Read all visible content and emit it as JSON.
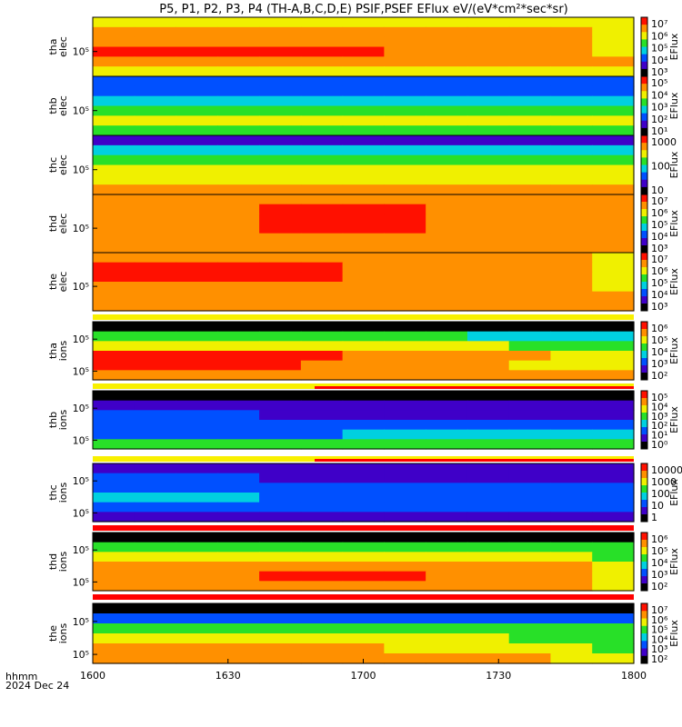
{
  "chart_data": {
    "type": "heatmap",
    "title": "P5, P1, P2, P3, P4 (TH-A,B,C,D,E) PSIF,PSEF EFlux eV/(eV*cm²*sec*sr)",
    "x_axis": {
      "ticks": [
        "1600",
        "1630",
        "1700",
        "1730",
        "1800"
      ],
      "corner_label": "hhmm",
      "date_label": "2024 Dec 24"
    },
    "panels": [
      {
        "probe": "tha",
        "species": "elec",
        "y_ticks": [
          "10⁵"
        ],
        "colorbar": {
          "label": "EFlux",
          "ticks": [
            "10⁷",
            "10⁶",
            "10⁵",
            "10⁴",
            "10³"
          ]
        },
        "values": [
          [
            5,
            5,
            5,
            5,
            5,
            5,
            5,
            5,
            5,
            5,
            5,
            5,
            5
          ],
          [
            6,
            6,
            6,
            6,
            6,
            6,
            6,
            6,
            6,
            6,
            6,
            6,
            5
          ],
          [
            6,
            6,
            6,
            6,
            6,
            6,
            6,
            6,
            6,
            6,
            6,
            6,
            5
          ],
          [
            7,
            7,
            7,
            7,
            7,
            7,
            7,
            6,
            6,
            6,
            6,
            6,
            5
          ],
          [
            6,
            6,
            6,
            6,
            6,
            6,
            6,
            6,
            6,
            6,
            6,
            6,
            6
          ],
          [
            5,
            5,
            5,
            5,
            5,
            5,
            5,
            5,
            5,
            5,
            5,
            5,
            5
          ]
        ]
      },
      {
        "probe": "thb",
        "species": "elec",
        "y_ticks": [
          "10⁵"
        ],
        "colorbar": {
          "label": "EFlux",
          "ticks": [
            "10⁵",
            "10⁴",
            "10³",
            "10²",
            "10¹"
          ]
        },
        "values": [
          [
            2,
            2,
            2,
            2,
            2,
            2,
            2,
            2,
            2,
            2,
            2,
            2,
            2
          ],
          [
            2,
            2,
            2,
            2,
            2,
            2,
            2,
            2,
            2,
            2,
            2,
            2,
            2
          ],
          [
            3,
            3,
            3,
            3,
            3,
            3,
            3,
            3,
            3,
            3,
            3,
            3,
            3
          ],
          [
            4,
            4,
            4,
            4,
            4,
            4,
            4,
            4,
            4,
            4,
            4,
            4,
            4
          ],
          [
            5,
            5,
            5,
            5,
            5,
            5,
            5,
            5,
            5,
            5,
            5,
            5,
            5
          ],
          [
            4,
            4,
            4,
            4,
            4,
            4,
            4,
            4,
            4,
            4,
            4,
            4,
            4
          ]
        ]
      },
      {
        "probe": "thc",
        "species": "elec",
        "y_ticks": [
          "10⁵"
        ],
        "colorbar": {
          "label": "EFlux",
          "ticks": [
            "1000",
            "100",
            "10"
          ]
        },
        "values": [
          [
            1,
            1,
            1,
            1,
            1,
            1,
            1,
            1,
            1,
            1,
            1,
            1,
            1
          ],
          [
            3,
            3,
            3,
            3,
            3,
            3,
            3,
            3,
            3,
            3,
            3,
            3,
            3
          ],
          [
            4,
            4,
            4,
            4,
            4,
            4,
            4,
            4,
            4,
            4,
            4,
            4,
            4
          ],
          [
            5,
            5,
            5,
            5,
            5,
            5,
            5,
            5,
            5,
            5,
            5,
            5,
            5
          ],
          [
            5,
            5,
            5,
            5,
            5,
            5,
            5,
            5,
            5,
            5,
            5,
            5,
            5
          ],
          [
            6,
            6,
            6,
            6,
            6,
            6,
            6,
            6,
            6,
            6,
            6,
            6,
            6
          ]
        ]
      },
      {
        "probe": "thd",
        "species": "elec",
        "y_ticks": [
          "10⁵"
        ],
        "colorbar": {
          "label": "EFlux",
          "ticks": [
            "10⁷",
            "10⁶",
            "10⁵",
            "10⁴",
            "10³"
          ]
        },
        "values": [
          [
            6,
            6,
            6,
            6,
            6,
            6,
            6,
            6,
            6,
            6,
            6,
            6,
            6
          ],
          [
            6,
            6,
            6,
            6,
            7,
            7,
            7,
            7,
            6,
            6,
            6,
            6,
            6
          ],
          [
            6,
            6,
            6,
            6,
            7,
            7,
            7,
            7,
            6,
            6,
            6,
            6,
            6
          ],
          [
            6,
            6,
            6,
            6,
            7,
            7,
            7,
            7,
            6,
            6,
            6,
            6,
            6
          ],
          [
            6,
            6,
            6,
            6,
            6,
            6,
            6,
            6,
            6,
            6,
            6,
            6,
            6
          ],
          [
            6,
            6,
            6,
            6,
            6,
            6,
            6,
            6,
            6,
            6,
            6,
            6,
            6
          ]
        ]
      },
      {
        "probe": "the",
        "species": "elec",
        "y_ticks": [
          "10⁵"
        ],
        "colorbar": {
          "label": "EFlux",
          "ticks": [
            "10⁷",
            "10⁶",
            "10⁵",
            "10⁴",
            "10³"
          ]
        },
        "values": [
          [
            6,
            6,
            6,
            6,
            6,
            6,
            6,
            6,
            6,
            6,
            6,
            6,
            5
          ],
          [
            7,
            7,
            7,
            7,
            7,
            7,
            6,
            6,
            6,
            6,
            6,
            6,
            5
          ],
          [
            7,
            7,
            7,
            7,
            7,
            7,
            6,
            6,
            6,
            6,
            6,
            6,
            5
          ],
          [
            6,
            6,
            6,
            6,
            6,
            6,
            6,
            6,
            6,
            6,
            6,
            6,
            5
          ],
          [
            6,
            6,
            6,
            6,
            6,
            6,
            6,
            6,
            6,
            6,
            6,
            6,
            6
          ],
          [
            6,
            6,
            6,
            6,
            6,
            6,
            6,
            6,
            6,
            6,
            6,
            6,
            6
          ]
        ]
      },
      {
        "probe": "tha",
        "species": "ions",
        "y_ticks": [
          "10⁵",
          "10⁵"
        ],
        "colorbar": {
          "label": "EFlux",
          "ticks": [
            "10⁶",
            "10⁵",
            "10⁴",
            "10³",
            "10²"
          ]
        },
        "values": [
          [
            0,
            0,
            0,
            0,
            0,
            0,
            0,
            0,
            0,
            0,
            0,
            0,
            0
          ],
          [
            4,
            4,
            4,
            4,
            4,
            4,
            4,
            4,
            4,
            3,
            3,
            3,
            3
          ],
          [
            5,
            5,
            5,
            5,
            5,
            5,
            5,
            5,
            5,
            5,
            4,
            4,
            4
          ],
          [
            7,
            7,
            7,
            7,
            7,
            7,
            6,
            6,
            6,
            6,
            6,
            5,
            5
          ],
          [
            7,
            7,
            7,
            7,
            7,
            6,
            6,
            6,
            6,
            6,
            5,
            5,
            5
          ],
          [
            6,
            6,
            6,
            6,
            6,
            6,
            6,
            6,
            6,
            6,
            6,
            6,
            6
          ]
        ]
      },
      {
        "probe": "thb",
        "species": "ions",
        "y_ticks": [
          "10⁵",
          "10⁵"
        ],
        "colorbar": {
          "label": "EFlux",
          "ticks": [
            "10⁵",
            "10⁴",
            "10³",
            "10²",
            "10¹",
            "10⁰"
          ]
        },
        "values": [
          [
            0,
            0,
            0,
            0,
            0,
            0,
            0,
            0,
            0,
            0,
            0,
            0,
            0
          ],
          [
            1,
            1,
            1,
            1,
            1,
            1,
            1,
            1,
            1,
            1,
            1,
            1,
            1
          ],
          [
            2,
            2,
            2,
            2,
            1,
            1,
            1,
            1,
            1,
            1,
            1,
            1,
            1
          ],
          [
            2,
            2,
            2,
            2,
            2,
            2,
            2,
            2,
            2,
            2,
            2,
            2,
            2
          ],
          [
            2,
            2,
            2,
            2,
            2,
            2,
            3,
            3,
            3,
            3,
            3,
            3,
            3
          ],
          [
            4,
            4,
            4,
            4,
            4,
            4,
            4,
            4,
            4,
            4,
            4,
            4,
            4
          ]
        ]
      },
      {
        "probe": "thc",
        "species": "ions",
        "y_ticks": [
          "10⁵",
          "10⁵"
        ],
        "colorbar": {
          "label": "EFlux",
          "ticks": [
            "10000",
            "1000",
            "100",
            "10",
            "1"
          ]
        },
        "values": [
          [
            1,
            1,
            1,
            1,
            1,
            1,
            1,
            1,
            1,
            1,
            1,
            1,
            1
          ],
          [
            2,
            2,
            2,
            2,
            1,
            1,
            1,
            1,
            1,
            1,
            1,
            1,
            1
          ],
          [
            2,
            2,
            2,
            2,
            2,
            2,
            2,
            2,
            2,
            2,
            2,
            2,
            2
          ],
          [
            3,
            3,
            3,
            3,
            2,
            2,
            2,
            2,
            2,
            2,
            2,
            2,
            2
          ],
          [
            2,
            2,
            2,
            2,
            2,
            2,
            2,
            2,
            2,
            2,
            2,
            2,
            2
          ],
          [
            1,
            1,
            1,
            1,
            1,
            1,
            1,
            1,
            1,
            1,
            1,
            1,
            1
          ]
        ]
      },
      {
        "probe": "thd",
        "species": "ions",
        "y_ticks": [
          "10⁵",
          "10⁵"
        ],
        "colorbar": {
          "label": "EFlux",
          "ticks": [
            "10⁶",
            "10⁵",
            "10⁴",
            "10³",
            "10²"
          ]
        },
        "values": [
          [
            0,
            0,
            0,
            0,
            0,
            0,
            0,
            0,
            0,
            0,
            0,
            0,
            0
          ],
          [
            4,
            4,
            4,
            4,
            4,
            4,
            4,
            4,
            4,
            4,
            4,
            4,
            4
          ],
          [
            5,
            5,
            5,
            5,
            5,
            5,
            5,
            5,
            5,
            5,
            5,
            5,
            4
          ],
          [
            6,
            6,
            6,
            6,
            6,
            6,
            6,
            6,
            6,
            6,
            6,
            6,
            5
          ],
          [
            6,
            6,
            6,
            6,
            7,
            7,
            7,
            7,
            6,
            6,
            6,
            6,
            5
          ],
          [
            6,
            6,
            6,
            6,
            6,
            6,
            6,
            6,
            6,
            6,
            6,
            6,
            5
          ]
        ]
      },
      {
        "probe": "the",
        "species": "ions",
        "y_ticks": [
          "10⁵",
          "10⁵"
        ],
        "colorbar": {
          "label": "EFlux",
          "ticks": [
            "10⁷",
            "10⁶",
            "10⁵",
            "10⁴",
            "10³",
            "10²"
          ]
        },
        "values": [
          [
            0,
            0,
            0,
            0,
            0,
            0,
            0,
            0,
            0,
            0,
            0,
            0,
            0
          ],
          [
            2,
            2,
            2,
            2,
            2,
            2,
            2,
            2,
            2,
            2,
            2,
            2,
            2
          ],
          [
            4,
            4,
            4,
            4,
            4,
            4,
            4,
            4,
            4,
            4,
            4,
            4,
            4
          ],
          [
            5,
            5,
            5,
            5,
            5,
            5,
            5,
            5,
            5,
            5,
            4,
            4,
            4
          ],
          [
            6,
            6,
            6,
            6,
            6,
            6,
            6,
            5,
            5,
            5,
            5,
            5,
            4
          ],
          [
            6,
            6,
            6,
            6,
            6,
            6,
            6,
            6,
            6,
            6,
            6,
            5,
            5
          ]
        ]
      }
    ],
    "colors": {
      "scale": [
        "#000000",
        "#3f00c8",
        "#0050ff",
        "#00d0e0",
        "#28e028",
        "#f0f000",
        "#ff9000",
        "#ff1000"
      ],
      "bar_yellow": "#f8f000",
      "bar_red": "#ff0000"
    }
  }
}
